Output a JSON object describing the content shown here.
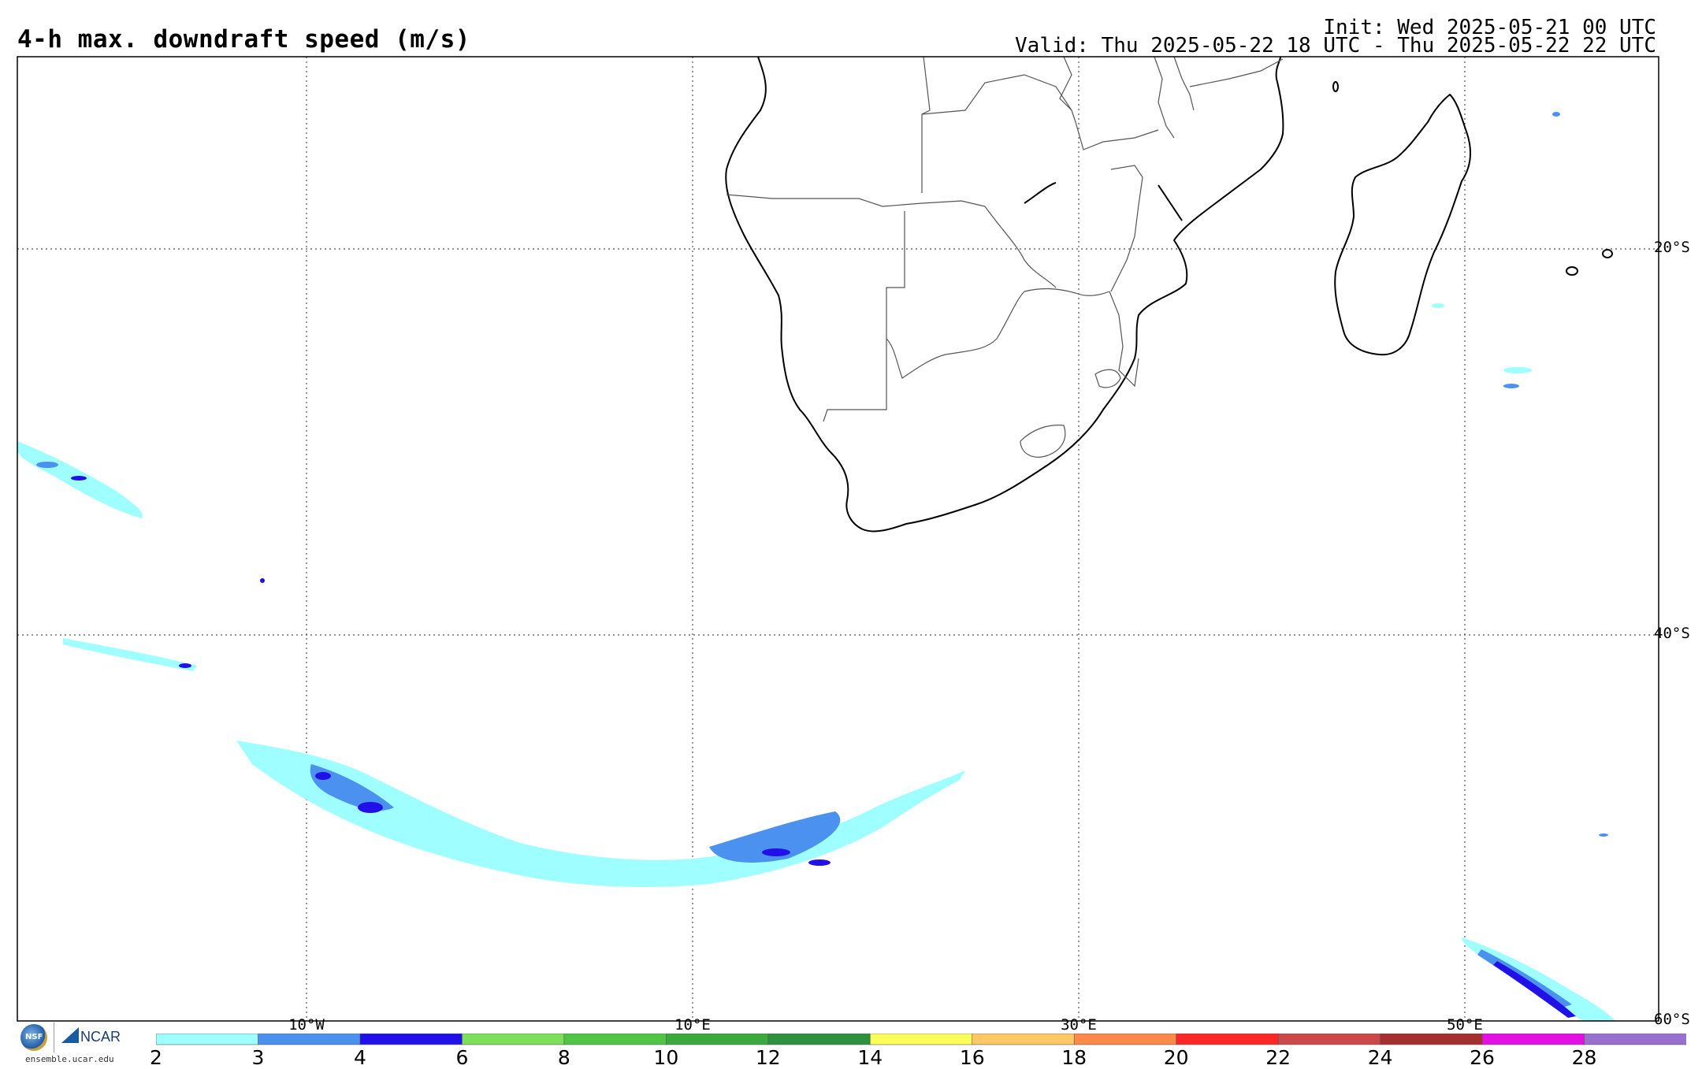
{
  "title": "4-h max. downdraft speed (m/s)",
  "init": "Init: Wed 2025-05-21 00 UTC",
  "valid": "Valid: Thu 2025-05-22 18 UTC - Thu 2025-05-22 22 UTC",
  "map": {
    "region": "Southern Africa / South Atlantic / SW Indian Ocean",
    "lon_range": [
      -25,
      60
    ],
    "lat_range": [
      -60,
      -10
    ],
    "lat_labels": [
      "20°S",
      "40°S",
      "60°S"
    ],
    "lon_labels": [
      "10°W",
      "10°E",
      "30°E",
      "50°E"
    ],
    "colors": {
      "coastline": "#000000",
      "borders": "#555555",
      "gridlines": "#555555"
    }
  },
  "colorbar": {
    "ticks": [
      "2",
      "3",
      "4",
      "6",
      "8",
      "10",
      "12",
      "14",
      "16",
      "18",
      "20",
      "22",
      "24",
      "26",
      "28"
    ],
    "colors": [
      "#9ffeff",
      "#4b91f0",
      "#2111e8",
      "#7de05a",
      "#50c445",
      "#3aaa3f",
      "#2d9140",
      "#fefe5a",
      "#fec865",
      "#fe8a4a",
      "#fe2727",
      "#cc4747",
      "#a52f2f",
      "#e40fe2",
      "#9a70cf"
    ]
  },
  "logos": {
    "nsf": "NSF",
    "ncar": "NCAR",
    "site": "ensemble.ucar.edu"
  }
}
